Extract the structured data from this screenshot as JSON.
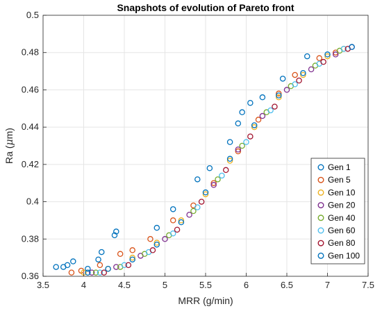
{
  "chart_data": {
    "type": "scatter",
    "title": "Snapshots of evolution of Pareto front",
    "xlabel": "MRR (g/min)",
    "ylabel_prefix": "Ra (",
    "ylabel_unit_greek": "μ",
    "ylabel_suffix": "m)",
    "xlim": [
      3.5,
      7.5
    ],
    "ylim": [
      0.36,
      0.5
    ],
    "x_ticks": [
      "3.5",
      "4",
      "4.5",
      "5",
      "5.5",
      "6",
      "6.5",
      "7",
      "7.5"
    ],
    "y_ticks": [
      "0.36",
      "0.38",
      "0.4",
      "0.42",
      "0.44",
      "0.46",
      "0.48",
      "0.5"
    ],
    "grid": true,
    "legend_position": "bottom-right",
    "marker": "open-circle",
    "series": [
      {
        "name": "Gen 1",
        "color": "#0072BD",
        "x": [
          3.66,
          3.75,
          3.8,
          3.87,
          4.05,
          4.18,
          4.22,
          4.38,
          4.4,
          4.9,
          5.1,
          5.4,
          5.55,
          5.8,
          5.9,
          5.95,
          6.05,
          6.2,
          6.45,
          6.75
        ],
        "y": [
          0.365,
          0.365,
          0.366,
          0.368,
          0.364,
          0.369,
          0.373,
          0.382,
          0.384,
          0.386,
          0.396,
          0.412,
          0.418,
          0.432,
          0.442,
          0.448,
          0.453,
          0.456,
          0.466,
          0.478
        ]
      },
      {
        "name": "Gen 5",
        "color": "#D95319",
        "x": [
          3.85,
          3.97,
          4.2,
          4.45,
          4.6,
          4.82,
          5.1,
          5.35,
          5.6,
          5.9,
          6.15,
          6.4,
          6.6,
          6.9,
          7.1
        ],
        "y": [
          0.362,
          0.363,
          0.366,
          0.372,
          0.374,
          0.38,
          0.39,
          0.398,
          0.41,
          0.427,
          0.444,
          0.458,
          0.468,
          0.477,
          0.48
        ]
      },
      {
        "name": "Gen 10",
        "color": "#EDB120",
        "x": [
          4.0,
          4.3,
          4.6,
          4.9,
          5.2,
          5.5,
          5.8,
          6.1,
          6.4,
          6.7,
          7.0,
          7.2
        ],
        "y": [
          0.362,
          0.364,
          0.37,
          0.378,
          0.39,
          0.404,
          0.422,
          0.44,
          0.456,
          0.468,
          0.478,
          0.482
        ]
      },
      {
        "name": "Gen 20",
        "color": "#7E2F8E",
        "x": [
          4.1,
          4.4,
          4.7,
          5.0,
          5.3,
          5.6,
          5.9,
          6.2,
          6.5,
          6.8,
          7.1,
          7.3
        ],
        "y": [
          0.362,
          0.365,
          0.371,
          0.38,
          0.393,
          0.409,
          0.428,
          0.446,
          0.46,
          0.471,
          0.479,
          0.483
        ]
      },
      {
        "name": "Gen 40",
        "color": "#77AC30",
        "x": [
          4.15,
          4.45,
          4.75,
          5.05,
          5.35,
          5.65,
          5.95,
          6.25,
          6.55,
          6.85,
          7.15
        ],
        "y": [
          0.362,
          0.365,
          0.372,
          0.382,
          0.395,
          0.412,
          0.43,
          0.448,
          0.462,
          0.473,
          0.481
        ]
      },
      {
        "name": "Gen 60",
        "color": "#4DBEEE",
        "x": [
          4.2,
          4.5,
          4.8,
          5.1,
          5.4,
          5.7,
          6.0,
          6.3,
          6.6,
          6.9,
          7.2
        ],
        "y": [
          0.362,
          0.366,
          0.373,
          0.383,
          0.397,
          0.414,
          0.432,
          0.449,
          0.463,
          0.474,
          0.482
        ]
      },
      {
        "name": "Gen 80",
        "color": "#A2142F",
        "x": [
          4.25,
          4.55,
          4.85,
          5.15,
          5.45,
          5.75,
          6.05,
          6.35,
          6.65,
          6.95,
          7.25
        ],
        "y": [
          0.362,
          0.366,
          0.374,
          0.385,
          0.4,
          0.417,
          0.435,
          0.451,
          0.465,
          0.475,
          0.482
        ]
      },
      {
        "name": "Gen 100",
        "color": "#0072BD",
        "x": [
          4.05,
          4.3,
          4.6,
          4.9,
          5.2,
          5.5,
          5.8,
          6.1,
          6.4,
          6.7,
          7.0,
          7.3
        ],
        "y": [
          0.362,
          0.364,
          0.369,
          0.377,
          0.389,
          0.405,
          0.423,
          0.441,
          0.457,
          0.469,
          0.479,
          0.483
        ]
      }
    ]
  }
}
